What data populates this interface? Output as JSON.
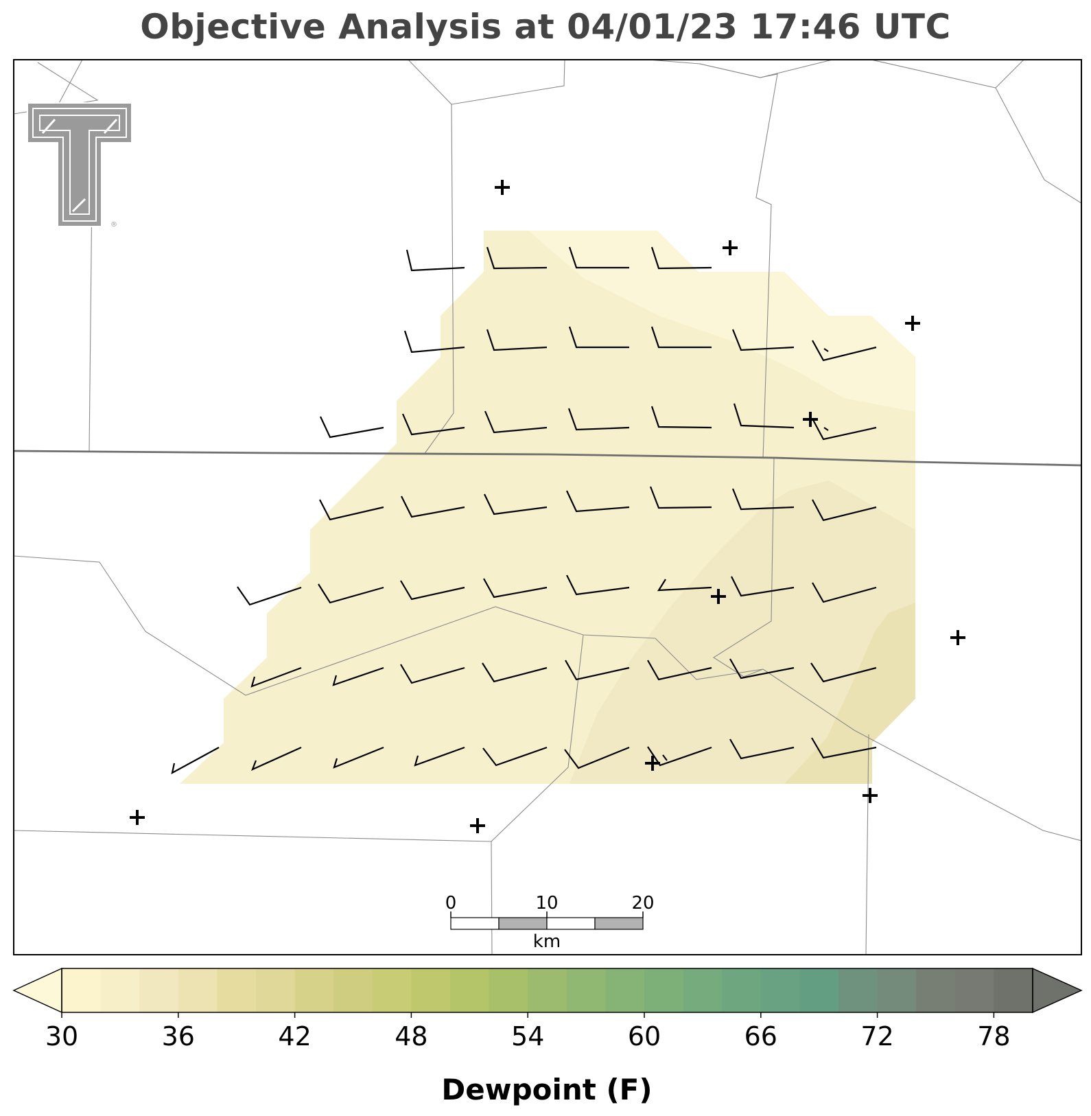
{
  "title": "Objective Analysis at 04/01/23 17:46 UTC",
  "colorbar": {
    "label": "Dewpoint (F)",
    "min": 30,
    "max": 80,
    "step": 2,
    "ticks": [
      30,
      36,
      42,
      48,
      54,
      60,
      66,
      72,
      78
    ],
    "extend": "both"
  },
  "scalebar": {
    "labels": [
      "0",
      "10",
      "20"
    ],
    "unit": "km"
  },
  "logo": {
    "name": "Texas Tech Double T",
    "mark": "®"
  },
  "colors": {
    "title": "#444444",
    "colorscale": [
      "#fdf8d8",
      "#fbf4cd",
      "#f6efc8",
      "#f2e8bf",
      "#ede3b2",
      "#e6dca0",
      "#e0d898",
      "#d6d28a",
      "#cfcd80",
      "#c8cc74",
      "#bfc86c",
      "#b4c468",
      "#a8c06a",
      "#9cbb6e",
      "#90b872",
      "#85b476",
      "#7db079",
      "#75ab7d",
      "#6ea680",
      "#68a283",
      "#649e82",
      "#6e927d",
      "#748a7a",
      "#777f75",
      "#767a72",
      "#6f716b"
    ]
  },
  "field_fill": {
    "units": "F",
    "levels": [
      {
        "range": [
          32,
          34
        ],
        "color": "#fcf6d8"
      },
      {
        "range": [
          34,
          36
        ],
        "color": "#f6f0cc"
      },
      {
        "range": [
          36,
          38
        ],
        "color": "#f1e9c4"
      },
      {
        "range": [
          38,
          40
        ],
        "color": "#ebe2b4"
      }
    ]
  }
}
